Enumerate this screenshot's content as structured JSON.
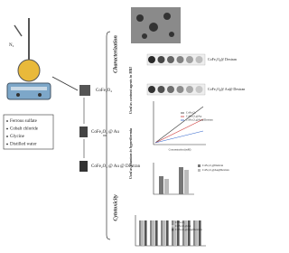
{
  "synthesis": {
    "gas": "N₂",
    "reagents": [
      "Ferrous sulfate",
      "Cobalt chloride",
      "Glycine",
      "Distilled water"
    ]
  },
  "products": [
    "CoFe₂O₄",
    "CoFe₂O₄ @ Au",
    "CoFe₂O₄ @ Au @ Dextran"
  ],
  "branches": [
    "Characterization",
    "Used as contrast agents in MRI",
    "Used as phantom in hyperthermia",
    "Cytotoxicity"
  ],
  "mri": {
    "labels": [
      "CoFe₂O₄@ Dextran",
      "CoFe₂O₄@ Au@ Dextran"
    ]
  },
  "relaxivity": {
    "x_label": "Concentration (mM)",
    "legend": [
      "CoFe₂O₄",
      "CoFe₂O₄@Au",
      "CoFe₂O₄@Au@Dextran"
    ]
  },
  "hyperthermia": {
    "legend": [
      "CoFe₂O₄@Dextran",
      "CoFe₂O₄@Au@Dextran"
    ]
  },
  "cytotoxicity": {
    "legend": [
      "CoFe₂O₄",
      "CoFe₂O₄@Au",
      "CoFe₂O₄@Au@Dextran"
    ]
  }
}
